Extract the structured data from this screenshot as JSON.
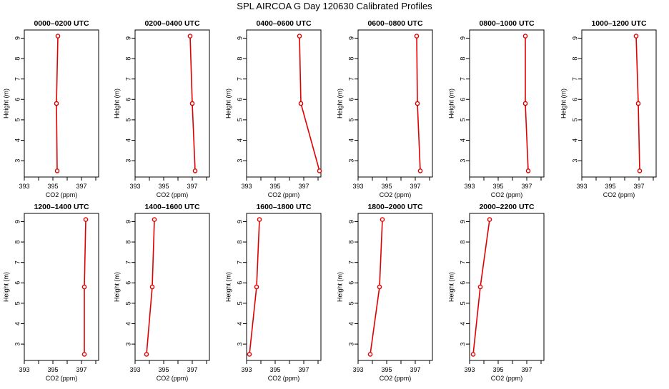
{
  "figure": {
    "title": "SPL AIRCOA G  Day 120630  Calibrated Profiles",
    "line_color": "#e00000"
  },
  "chart_data": [
    {
      "type": "line",
      "title": "0000–0200 UTC",
      "xlabel": "CO2 (ppm)",
      "ylabel": "Height (m)",
      "xlim": [
        393,
        398.2
      ],
      "ylim": [
        2.2,
        9.4
      ],
      "x_ticks": [
        393,
        395,
        397
      ],
      "y_ticks": [
        3,
        4,
        5,
        6,
        7,
        8,
        9
      ],
      "series": [
        {
          "x": [
            395.3,
            395.25,
            395.35
          ],
          "y": [
            2.5,
            5.8,
            9.1
          ]
        }
      ]
    },
    {
      "type": "line",
      "title": "0200–0400 UTC",
      "xlabel": "CO2 (ppm)",
      "ylabel": "Height (m)",
      "xlim": [
        393,
        398.2
      ],
      "ylim": [
        2.2,
        9.4
      ],
      "x_ticks": [
        393,
        395,
        397
      ],
      "y_ticks": [
        3,
        4,
        5,
        6,
        7,
        8,
        9
      ],
      "series": [
        {
          "x": [
            397.2,
            397.0,
            396.85
          ],
          "y": [
            2.5,
            5.8,
            9.1
          ]
        }
      ]
    },
    {
      "type": "line",
      "title": "0400–0600 UTC",
      "xlabel": "CO2 (ppm)",
      "ylabel": "Height (m)",
      "xlim": [
        393,
        398.2
      ],
      "ylim": [
        2.2,
        9.4
      ],
      "x_ticks": [
        393,
        395,
        397
      ],
      "y_ticks": [
        3,
        4,
        5,
        6,
        7,
        8,
        9
      ],
      "series": [
        {
          "x": [
            398.1,
            396.8,
            396.7
          ],
          "y": [
            2.5,
            5.8,
            9.1
          ]
        }
      ]
    },
    {
      "type": "line",
      "title": "0600–0800 UTC",
      "xlabel": "CO2 (ppm)",
      "ylabel": "Height (m)",
      "xlim": [
        393,
        398.2
      ],
      "ylim": [
        2.2,
        9.4
      ],
      "x_ticks": [
        393,
        395,
        397
      ],
      "y_ticks": [
        3,
        4,
        5,
        6,
        7,
        8,
        9
      ],
      "series": [
        {
          "x": [
            397.35,
            397.15,
            397.1
          ],
          "y": [
            2.5,
            5.8,
            9.1
          ]
        }
      ]
    },
    {
      "type": "line",
      "title": "0800–1000 UTC",
      "xlabel": "CO2 (ppm)",
      "ylabel": "Height (m)",
      "xlim": [
        393,
        398.2
      ],
      "ylim": [
        2.2,
        9.4
      ],
      "x_ticks": [
        393,
        395,
        397
      ],
      "y_ticks": [
        3,
        4,
        5,
        6,
        7,
        8,
        9
      ],
      "series": [
        {
          "x": [
            397.1,
            396.9,
            396.9
          ],
          "y": [
            2.5,
            5.8,
            9.1
          ]
        }
      ]
    },
    {
      "type": "line",
      "title": "1000–1200 UTC",
      "xlabel": "CO2 (ppm)",
      "ylabel": "Height (m)",
      "xlim": [
        393,
        398.2
      ],
      "ylim": [
        2.2,
        9.4
      ],
      "x_ticks": [
        393,
        395,
        397
      ],
      "y_ticks": [
        3,
        4,
        5,
        6,
        7,
        8,
        9
      ],
      "series": [
        {
          "x": [
            397.05,
            396.95,
            396.8
          ],
          "y": [
            2.5,
            5.8,
            9.1
          ]
        }
      ]
    },
    {
      "type": "line",
      "title": "1200–1400 UTC",
      "xlabel": "CO2 (ppm)",
      "ylabel": "Height (m)",
      "xlim": [
        393,
        398.2
      ],
      "ylim": [
        2.2,
        9.4
      ],
      "x_ticks": [
        393,
        395,
        397
      ],
      "y_ticks": [
        3,
        4,
        5,
        6,
        7,
        8,
        9
      ],
      "series": [
        {
          "x": [
            397.2,
            397.2,
            397.3
          ],
          "y": [
            2.5,
            5.8,
            9.1
          ]
        }
      ]
    },
    {
      "type": "line",
      "title": "1400–1600 UTC",
      "xlabel": "CO2 (ppm)",
      "ylabel": "Height (m)",
      "xlim": [
        393,
        398.2
      ],
      "ylim": [
        2.2,
        9.4
      ],
      "x_ticks": [
        393,
        395,
        397
      ],
      "y_ticks": [
        3,
        4,
        5,
        6,
        7,
        8,
        9
      ],
      "series": [
        {
          "x": [
            393.8,
            394.2,
            394.35
          ],
          "y": [
            2.5,
            5.8,
            9.1
          ]
        }
      ]
    },
    {
      "type": "line",
      "title": "1600–1800 UTC",
      "xlabel": "CO2 (ppm)",
      "ylabel": "Height (m)",
      "xlim": [
        393,
        398.2
      ],
      "ylim": [
        2.2,
        9.4
      ],
      "x_ticks": [
        393,
        395,
        397
      ],
      "y_ticks": [
        3,
        4,
        5,
        6,
        7,
        8,
        9
      ],
      "series": [
        {
          "x": [
            393.2,
            393.7,
            393.9
          ],
          "y": [
            2.5,
            5.8,
            9.1
          ]
        }
      ]
    },
    {
      "type": "line",
      "title": "1800–2000 UTC",
      "xlabel": "CO2 (ppm)",
      "ylabel": "Height (m)",
      "xlim": [
        393,
        398.2
      ],
      "ylim": [
        2.2,
        9.4
      ],
      "x_ticks": [
        393,
        395,
        397
      ],
      "y_ticks": [
        3,
        4,
        5,
        6,
        7,
        8,
        9
      ],
      "series": [
        {
          "x": [
            393.85,
            394.5,
            394.7
          ],
          "y": [
            2.5,
            5.8,
            9.1
          ]
        }
      ]
    },
    {
      "type": "line",
      "title": "2000–2200 UTC",
      "xlabel": "CO2 (ppm)",
      "ylabel": "Height (m)",
      "xlim": [
        393,
        398.2
      ],
      "ylim": [
        2.2,
        9.4
      ],
      "x_ticks": [
        393,
        395,
        397
      ],
      "y_ticks": [
        3,
        4,
        5,
        6,
        7,
        8,
        9
      ],
      "series": [
        {
          "x": [
            393.25,
            393.75,
            394.4
          ],
          "y": [
            2.5,
            5.8,
            9.1
          ]
        }
      ]
    }
  ]
}
